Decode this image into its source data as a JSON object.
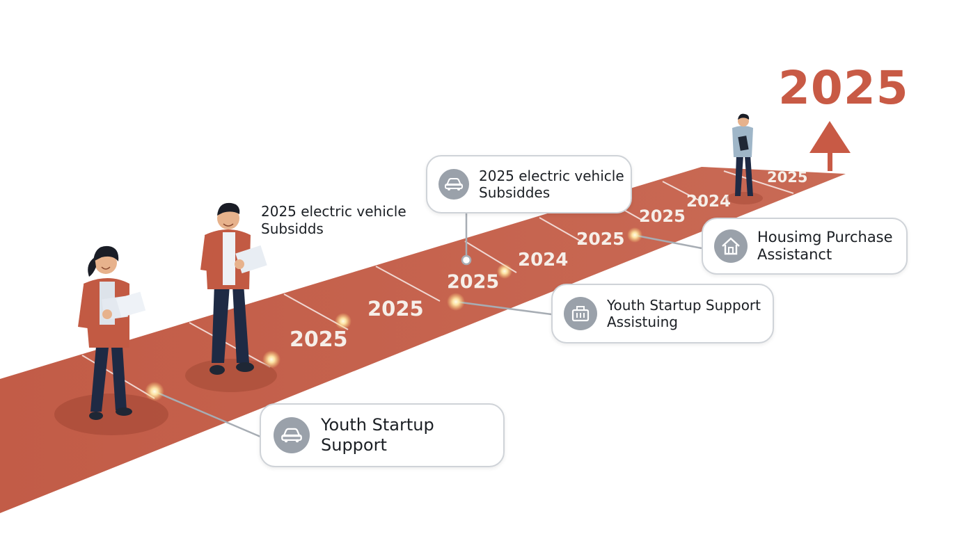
{
  "colors": {
    "road": "#c4604b",
    "road_dark": "#b55540",
    "accent": "#c85a45",
    "marker_glow": "#ffe9a8"
  },
  "goal": {
    "year": "2025",
    "icon": "triangle-flag-icon"
  },
  "road_years": [
    "2025",
    "2025",
    "2025",
    "2024",
    "2025",
    "2025",
    "2024",
    "2025"
  ],
  "free_label": {
    "line1": "2025 electric vehicle",
    "line2": "Subsidds"
  },
  "cards": [
    {
      "icon": "car-icon",
      "line1": "2025 electric vehicle",
      "line2": "Subsiddes"
    },
    {
      "icon": "house-icon",
      "line1": "Housimg Purchase",
      "line2": "Assistanct"
    },
    {
      "icon": "startup-kit-icon",
      "line1": "Youth Startup Support",
      "line2": "Assistuing"
    },
    {
      "icon": "car-icon",
      "line1": "Youth Startup",
      "line2": "Support"
    }
  ]
}
